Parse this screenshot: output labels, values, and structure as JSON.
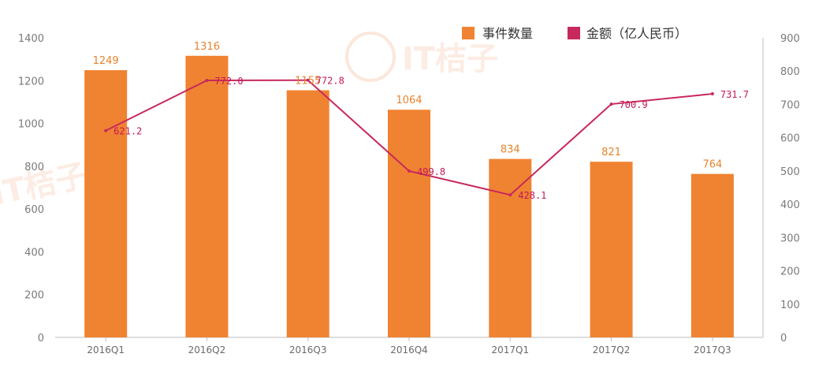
{
  "chart_data": {
    "type": "bar",
    "categories": [
      "2016Q1",
      "2016Q2",
      "2016Q3",
      "2016Q4",
      "2017Q1",
      "2017Q2",
      "2017Q3"
    ],
    "series": [
      {
        "name": "事件数量",
        "type": "bar",
        "axis": "left",
        "color": "#f08331",
        "values": [
          1249,
          1316,
          1155,
          1064,
          834,
          821,
          764
        ],
        "labels": [
          "1249",
          "1316",
          "1155",
          "1064",
          "834",
          "821",
          "764"
        ]
      },
      {
        "name": "金额（亿人民币）",
        "type": "line",
        "axis": "right",
        "color": "#c8295c",
        "values": [
          621.2,
          772.0,
          772.8,
          499.8,
          428.1,
          700.9,
          731.7
        ],
        "labels": [
          "621.2",
          "772.0",
          "772.8",
          "499.8",
          "428.1",
          "700.9",
          "731.7"
        ]
      }
    ],
    "y_left": {
      "min": 0,
      "max": 1400,
      "ticks": [
        "0",
        "200",
        "400",
        "600",
        "800",
        "1000",
        "1200",
        "1400"
      ]
    },
    "y_right": {
      "min": 0,
      "max": 900,
      "ticks": [
        "0",
        "100",
        "200",
        "300",
        "400",
        "500",
        "600",
        "700",
        "800",
        "900"
      ]
    },
    "legend": {
      "position": "top-right"
    },
    "grid": false,
    "watermark": "IT桔子",
    "title": "",
    "xlabel": "",
    "ylabel": ""
  }
}
